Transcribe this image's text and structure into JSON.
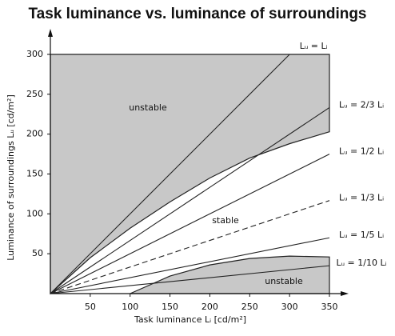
{
  "chart_data": {
    "type": "line",
    "title": "Task luminance vs. luminance of surroundings",
    "x_label": "Task luminance Lᵢ [cd/m²]",
    "y_label": "Luminance of surroundings Lᵤ [cd/m²]",
    "xlim": [
      0,
      350
    ],
    "ylim": [
      0,
      300
    ],
    "xticks": [
      50,
      100,
      150,
      200,
      250,
      300,
      350
    ],
    "yticks": [
      50,
      100,
      150,
      200,
      250,
      300
    ],
    "series": [
      {
        "name": "Lᵤ = Lᵢ",
        "color": "#222",
        "x": [
          0,
          300
        ],
        "values": [
          0,
          300
        ]
      },
      {
        "name": "Lᵤ = 2/3 Lᵢ",
        "color": "#222",
        "x": [
          0,
          350
        ],
        "values": [
          0,
          233.3
        ]
      },
      {
        "name": "Lᵤ = 1/2 Lᵢ",
        "color": "#222",
        "x": [
          0,
          350
        ],
        "values": [
          0,
          175
        ]
      },
      {
        "name": "Lᵤ = 1/3 Lᵢ",
        "color": "#222",
        "dashed": true,
        "x": [
          0,
          350
        ],
        "values": [
          0,
          116.7
        ]
      },
      {
        "name": "Lᵤ = 1/5 Lᵢ",
        "color": "#222",
        "x": [
          0,
          350
        ],
        "values": [
          0,
          70
        ]
      },
      {
        "name": "Lᵤ = 1/10 Lᵢ",
        "color": "#222",
        "x": [
          0,
          350
        ],
        "values": [
          0,
          35
        ]
      }
    ],
    "regions": [
      {
        "name": "unstable",
        "color": "#c8c8c8",
        "x": [
          0,
          50,
          100,
          150,
          200,
          250,
          300,
          350
        ],
        "values": [
          0,
          45,
          82,
          115,
          145,
          170,
          188,
          203
        ]
      },
      {
        "name": "unstable",
        "color": "#c8c8c8",
        "x": [
          100,
          150,
          200,
          250,
          300,
          350
        ],
        "values": [
          0,
          22,
          36,
          44,
          47,
          46
        ]
      }
    ],
    "annotation": "stable"
  }
}
